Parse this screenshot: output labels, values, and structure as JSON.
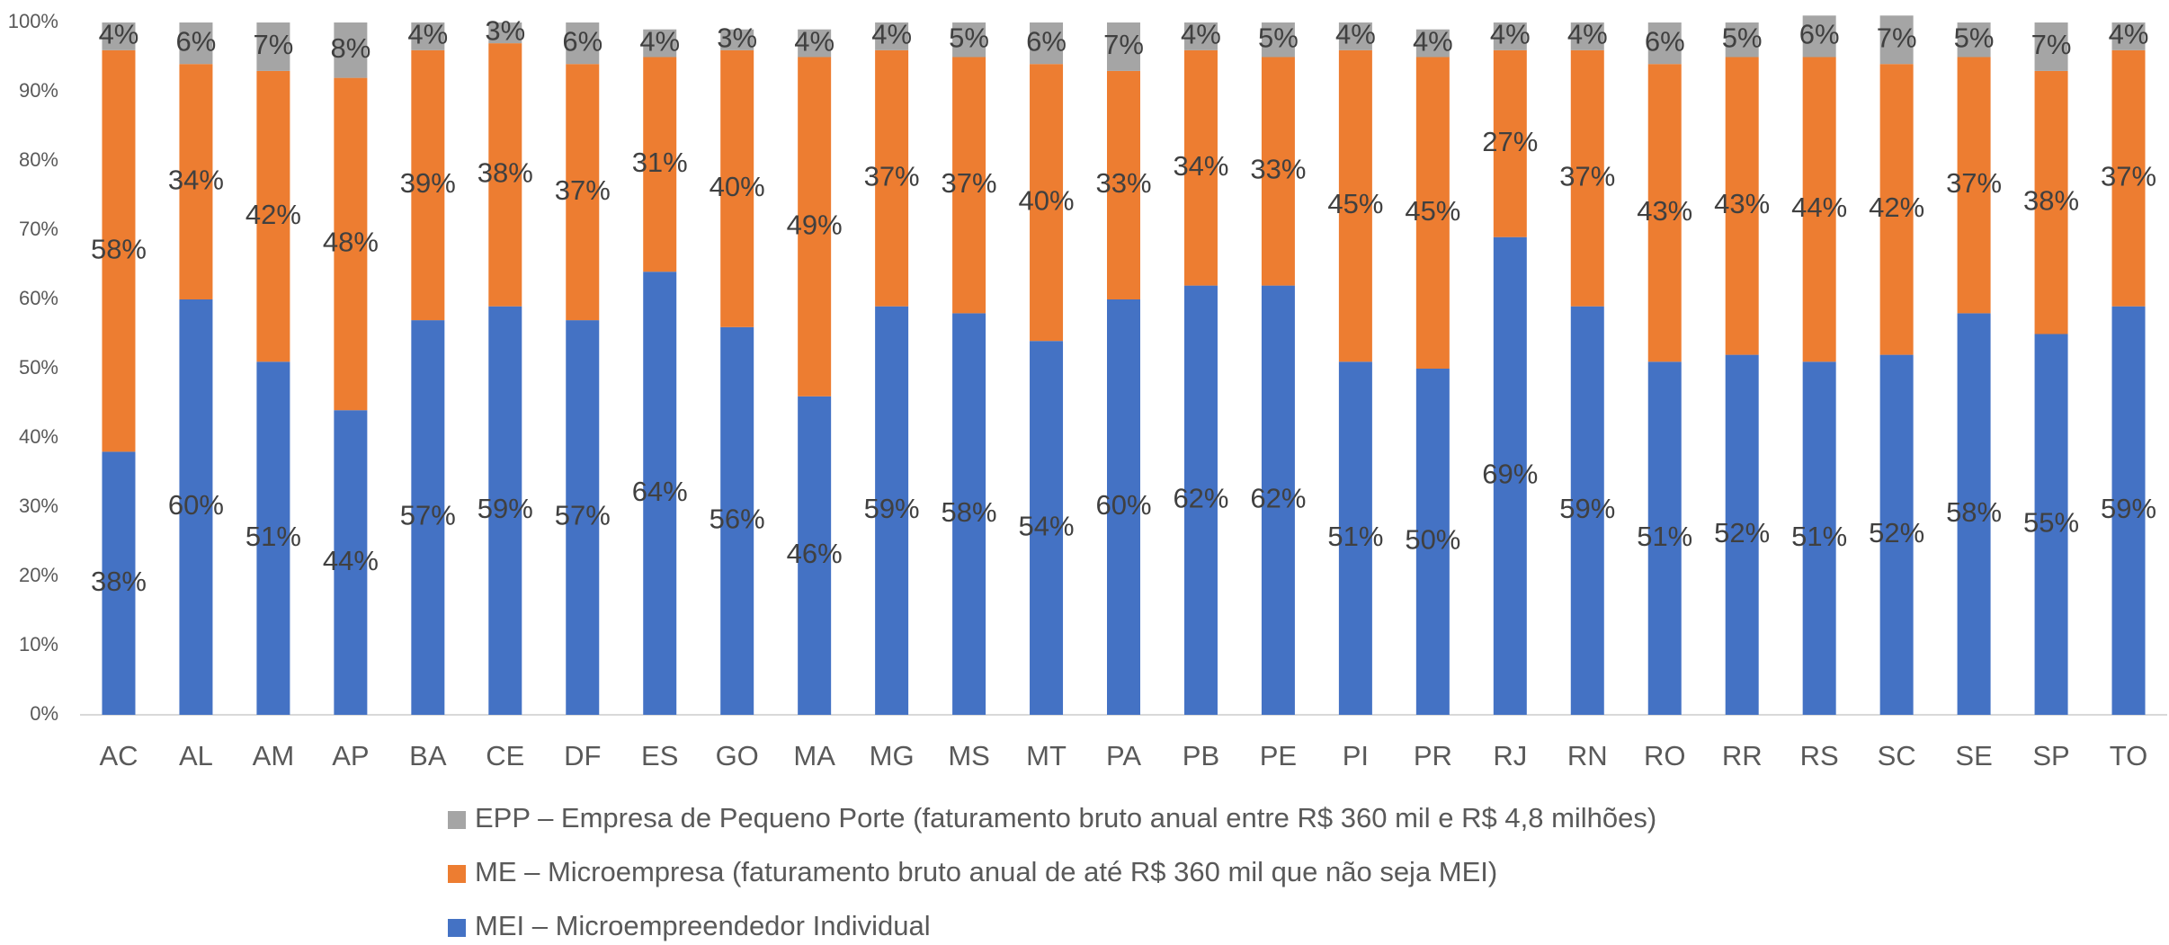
{
  "chart_data": {
    "type": "stacked_bar",
    "categories": [
      "AC",
      "AL",
      "AM",
      "AP",
      "BA",
      "CE",
      "DF",
      "ES",
      "GO",
      "MA",
      "MG",
      "MS",
      "MT",
      "PA",
      "PB",
      "PE",
      "PI",
      "PR",
      "RJ",
      "RN",
      "RO",
      "RR",
      "RS",
      "SC",
      "SE",
      "SP",
      "TO"
    ],
    "series": [
      {
        "name": "MEI – Microempreendedor Individual",
        "color": "#4472c4",
        "values": [
          38,
          60,
          51,
          44,
          57,
          59,
          57,
          64,
          56,
          46,
          59,
          58,
          54,
          60,
          62,
          62,
          51,
          50,
          69,
          59,
          51,
          52,
          51,
          52,
          58,
          55,
          59
        ],
        "value_labels": [
          "38%",
          "60%",
          "51%",
          "44%",
          "57%",
          "59%",
          "57%",
          "64%",
          "56%",
          "46%",
          "59%",
          "58%",
          "54%",
          "60%",
          "62%",
          "62%",
          "51%",
          "50%",
          "69%",
          "59%",
          "51%",
          "52%",
          "51%",
          "52%",
          "58%",
          "55%",
          "59%"
        ]
      },
      {
        "name": "ME – Microempresa (faturamento bruto anual de até R$ 360 mil que não seja MEI)",
        "color": "#ed7d31",
        "values": [
          58,
          34,
          42,
          48,
          39,
          38,
          37,
          31,
          40,
          49,
          37,
          37,
          40,
          33,
          34,
          33,
          45,
          45,
          27,
          37,
          43,
          43,
          44,
          42,
          37,
          38,
          37
        ],
        "value_labels": [
          "58%",
          "34%",
          "42%",
          "48%",
          "39%",
          "38%",
          "37%",
          "31%",
          "40%",
          "49%",
          "37%",
          "37%",
          "40%",
          "33%",
          "34%",
          "33%",
          "45%",
          "45%",
          "27%",
          "37%",
          "43%",
          "43%",
          "44%",
          "42%",
          "37%",
          "38%",
          "37%"
        ]
      },
      {
        "name": "EPP – Empresa de Pequeno Porte (faturamento bruto anual entre R$ 360 mil e R$ 4,8 milhões)",
        "color": "#a5a5a5",
        "values": [
          4,
          6,
          7,
          8,
          4,
          3,
          6,
          4,
          3,
          4,
          4,
          5,
          6,
          7,
          4,
          5,
          4,
          4,
          4,
          4,
          6,
          5,
          6,
          7,
          5,
          7,
          4
        ],
        "value_labels": [
          "4%",
          "6%",
          "7%",
          "8%",
          "4%",
          "3%",
          "6%",
          "4%",
          "3%",
          "4%",
          "4%",
          "5%",
          "6%",
          "7%",
          "4%",
          "5%",
          "4%",
          "4%",
          "4%",
          "4%",
          "6%",
          "5%",
          "6%",
          "7%",
          "5%",
          "7%",
          "4%"
        ]
      }
    ],
    "ylim": [
      0,
      100
    ],
    "yticks": [
      {
        "value": 0,
        "label": "0%"
      },
      {
        "value": 10,
        "label": "10%"
      },
      {
        "value": 20,
        "label": "20%"
      },
      {
        "value": 30,
        "label": "30%"
      },
      {
        "value": 40,
        "label": "40%"
      },
      {
        "value": 50,
        "label": "50%"
      },
      {
        "value": 60,
        "label": "60%"
      },
      {
        "value": 70,
        "label": "70%"
      },
      {
        "value": 80,
        "label": "80%"
      },
      {
        "value": 90,
        "label": "90%"
      },
      {
        "value": 100,
        "label": "100%"
      }
    ],
    "legend": "bottom"
  }
}
